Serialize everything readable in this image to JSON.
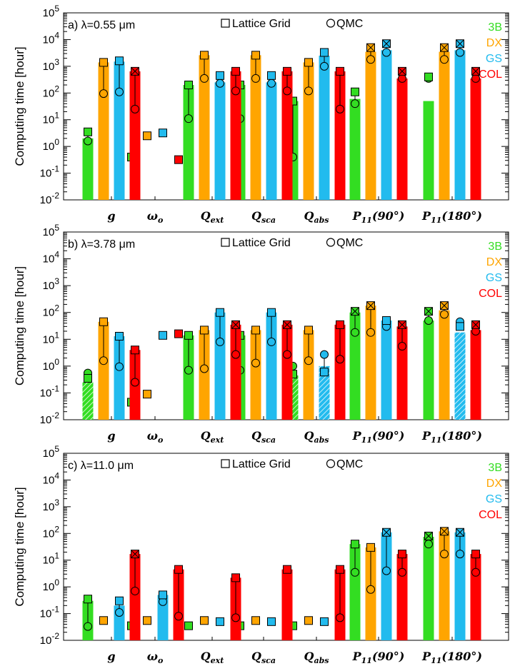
{
  "figure": {
    "ylabel": "Computing time [hour]",
    "legend_markers": [
      "Lattice Grid",
      "QMC"
    ],
    "methods": [
      {
        "name": "3B",
        "color": "#33dd22"
      },
      {
        "name": "DX",
        "color": "#ffa500"
      },
      {
        "name": "GS",
        "color": "#22bbee"
      },
      {
        "name": "COL",
        "color": "#ff0000"
      }
    ]
  },
  "chart_data": [
    {
      "type": "bar",
      "title": "a) λ=0.55 μm",
      "yscale": "log",
      "ylim": [
        0.01,
        100000
      ],
      "y_tick_labels": [
        "10^-2",
        "10^-1",
        "10^0",
        "10^1",
        "10^2",
        "10^3",
        "10^4",
        "10^5"
      ],
      "categories": [
        "g",
        "ωo",
        "Qext",
        "Qsca",
        "Qabs",
        "P11(90°)",
        "P11(180°)"
      ],
      "series": [
        {
          "name": "3B",
          "bars": [
            2.0,
            null,
            200,
            200,
            50,
            60,
            50
          ],
          "lattice": [
            3.5,
            0.4,
            200,
            200,
            50,
            110,
            400
          ],
          "qmc": [
            1.6,
            null,
            11,
            11,
            0.4,
            40,
            350
          ],
          "crossed": [
            false,
            false,
            false,
            false,
            false,
            false,
            false
          ],
          "hatched": [
            false,
            false,
            false,
            false,
            false,
            false,
            false
          ]
        },
        {
          "name": "DX",
          "bars": [
            1400,
            null,
            2600,
            2600,
            1400,
            3500,
            3500
          ],
          "lattice": [
            1400,
            2.5,
            2600,
            2600,
            1400,
            5000,
            5000
          ],
          "qmc": [
            95,
            null,
            350,
            350,
            120,
            1800,
            1800
          ],
          "crossed": [
            false,
            false,
            false,
            false,
            false,
            true,
            true
          ],
          "hatched": [
            false,
            false,
            false,
            false,
            false,
            false,
            false
          ]
        },
        {
          "name": "GS",
          "bars": [
            1500,
            null,
            250,
            250,
            2500,
            4000,
            4000
          ],
          "lattice": [
            1600,
            3.2,
            450,
            450,
            3300,
            7000,
            7000
          ],
          "qmc": [
            110,
            null,
            230,
            230,
            1000,
            3300,
            3300
          ],
          "crossed": [
            false,
            false,
            false,
            false,
            false,
            true,
            true
          ],
          "hatched": [
            false,
            false,
            false,
            false,
            false,
            false,
            false
          ]
        },
        {
          "name": "COL",
          "bars": [
            650,
            null,
            650,
            650,
            650,
            350,
            350
          ],
          "lattice": [
            650,
            0.32,
            650,
            650,
            650,
            650,
            650
          ],
          "qmc": [
            25,
            null,
            120,
            120,
            25,
            350,
            350
          ],
          "crossed": [
            true,
            false,
            false,
            false,
            false,
            true,
            true
          ],
          "hatched": [
            false,
            false,
            false,
            false,
            false,
            false,
            false
          ]
        }
      ]
    },
    {
      "type": "bar",
      "title": "b) λ=3.78 μm",
      "yscale": "log",
      "ylim": [
        0.01,
        100000
      ],
      "y_tick_labels": [
        "10^-2",
        "10^-1",
        "10^0",
        "10^1",
        "10^2",
        "10^3",
        "10^4",
        "10^5"
      ],
      "categories": [
        "g",
        "ωo",
        "Qext",
        "Qsca",
        "Qabs",
        "P11(90°)",
        "P11(180°)"
      ],
      "series": [
        {
          "name": "3B",
          "bars": [
            0.25,
            null,
            14,
            14,
            0.45,
            100,
            50
          ],
          "lattice": [
            0.35,
            0.045,
            14,
            14,
            0.5,
            110,
            110
          ],
          "qmc": [
            0.55,
            null,
            0.7,
            0.7,
            1.0,
            18,
            50
          ],
          "crossed": [
            false,
            false,
            false,
            false,
            false,
            true,
            true
          ],
          "hatched": [
            true,
            false,
            false,
            false,
            true,
            false,
            false
          ]
        },
        {
          "name": "DX",
          "bars": [
            45,
            null,
            22,
            22,
            22,
            180,
            120
          ],
          "lattice": [
            45,
            0.09,
            22,
            22,
            22,
            180,
            180
          ],
          "qmc": [
            1.6,
            null,
            0.8,
            1.3,
            1.6,
            18,
            85
          ],
          "crossed": [
            false,
            false,
            false,
            false,
            false,
            true,
            true
          ],
          "hatched": [
            false,
            false,
            false,
            false,
            false,
            false,
            false
          ]
        },
        {
          "name": "GS",
          "bars": [
            13,
            null,
            100,
            100,
            1.0,
            50,
            18
          ],
          "lattice": [
            13,
            14,
            100,
            100,
            0.6,
            50,
            30
          ],
          "qmc": [
            0.95,
            null,
            8,
            8,
            2.7,
            30,
            45
          ],
          "crossed": [
            false,
            false,
            false,
            false,
            false,
            false,
            false
          ],
          "hatched": [
            false,
            false,
            false,
            false,
            true,
            false,
            true
          ]
        },
        {
          "name": "COL",
          "bars": [
            4,
            null,
            35,
            35,
            35,
            30,
            22
          ],
          "lattice": [
            4,
            16,
            35,
            35,
            35,
            35,
            35
          ],
          "qmc": [
            0.25,
            null,
            2.7,
            2.7,
            1.8,
            5.5,
            20
          ],
          "crossed": [
            false,
            false,
            true,
            true,
            false,
            true,
            true
          ],
          "hatched": [
            false,
            false,
            false,
            false,
            false,
            false,
            false
          ]
        }
      ]
    },
    {
      "type": "bar",
      "title": "c) λ=11.0 μm",
      "yscale": "log",
      "ylim": [
        0.01,
        100000
      ],
      "y_tick_labels": [
        "10^-2",
        "10^-1",
        "10^0",
        "10^1",
        "10^2",
        "10^3",
        "10^4",
        "10^5"
      ],
      "categories": [
        "g",
        "ωo",
        "Qext",
        "Qsca",
        "Qabs",
        "P11(90°)",
        "P11(180°)"
      ],
      "series": [
        {
          "name": "3B",
          "bars": [
            0.3,
            null,
            null,
            null,
            null,
            40,
            75
          ],
          "lattice": [
            0.35,
            0.035,
            0.035,
            0.035,
            0.035,
            40,
            80
          ],
          "qmc": [
            0.033,
            null,
            null,
            null,
            null,
            3.5,
            40
          ],
          "crossed": [
            false,
            false,
            false,
            false,
            false,
            false,
            true
          ],
          "hatched": [
            false,
            false,
            false,
            false,
            false,
            false,
            false
          ]
        },
        {
          "name": "DX",
          "bars": [
            null,
            null,
            null,
            null,
            null,
            30,
            120
          ],
          "lattice": [
            0.055,
            0.055,
            0.055,
            0.055,
            0.055,
            30,
            120
          ],
          "qmc": [
            null,
            null,
            null,
            null,
            null,
            0.8,
            17
          ],
          "crossed": [
            false,
            false,
            false,
            false,
            false,
            false,
            true
          ],
          "hatched": [
            false,
            false,
            false,
            false,
            false,
            false,
            false
          ]
        },
        {
          "name": "GS",
          "bars": [
            0.2,
            0.5,
            null,
            null,
            null,
            110,
            110
          ],
          "lattice": [
            0.3,
            0.5,
            0.05,
            0.05,
            0.05,
            110,
            110
          ],
          "qmc": [
            0.11,
            0.28,
            null,
            null,
            null,
            4,
            17
          ],
          "crossed": [
            false,
            false,
            false,
            false,
            false,
            true,
            true
          ],
          "hatched": [
            false,
            false,
            false,
            false,
            false,
            false,
            false
          ]
        },
        {
          "name": "COL",
          "bars": [
            17,
            4.5,
            2.2,
            4.5,
            4.5,
            17,
            17
          ],
          "lattice": [
            17,
            4.5,
            2.2,
            4.5,
            4.5,
            17,
            17
          ],
          "qmc": [
            0.7,
            0.08,
            0.07,
            null,
            0.07,
            3.5,
            3.5
          ],
          "crossed": [
            true,
            false,
            false,
            false,
            false,
            false,
            false
          ],
          "hatched": [
            false,
            false,
            false,
            false,
            false,
            false,
            false
          ]
        }
      ]
    }
  ]
}
